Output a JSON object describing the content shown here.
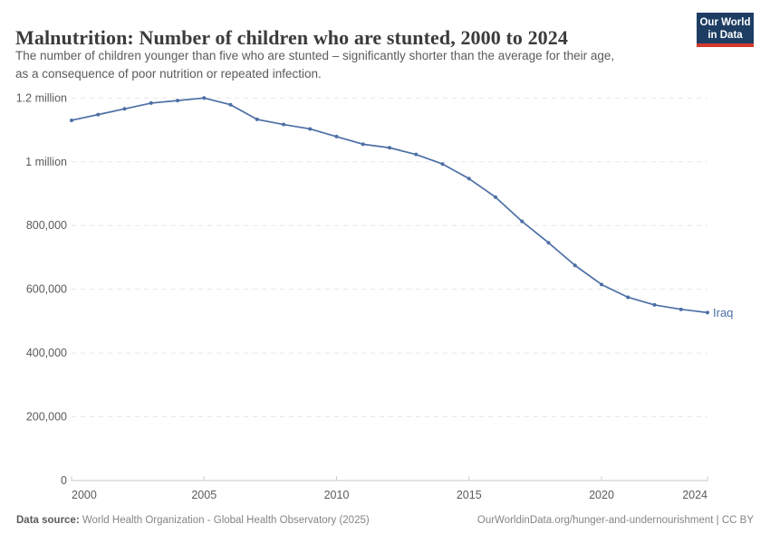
{
  "header": {
    "title": "Malnutrition: Number of children who are stunted, 2000 to 2024",
    "subtitle_line1": "The number of children younger than five who are stunted – significantly shorter than the average for their age,",
    "subtitle_line2": "as a consequence of poor nutrition or repeated infection."
  },
  "logo": {
    "line1": "Our World",
    "line2": "in Data",
    "bg_color": "#1d3d63",
    "accent_color": "#d23a2e"
  },
  "chart_data": {
    "type": "line",
    "title": "Malnutrition: Number of children who are stunted, 2000 to 2024",
    "xlabel": "",
    "ylabel": "",
    "xlim": [
      2000,
      2024
    ],
    "ylim": [
      0,
      1200000
    ],
    "grid": "horizontal-dashed",
    "legend_position": "end-of-line",
    "xticks": [
      {
        "value": 2000,
        "label": "2000"
      },
      {
        "value": 2005,
        "label": "2005"
      },
      {
        "value": 2010,
        "label": "2010"
      },
      {
        "value": 2015,
        "label": "2015"
      },
      {
        "value": 2020,
        "label": "2020"
      },
      {
        "value": 2024,
        "label": "2024"
      }
    ],
    "yticks": [
      {
        "value": 0,
        "label": "0"
      },
      {
        "value": 200000,
        "label": "200,000"
      },
      {
        "value": 400000,
        "label": "400,000"
      },
      {
        "value": 600000,
        "label": "600,000"
      },
      {
        "value": 800000,
        "label": "800,000"
      },
      {
        "value": 1000000,
        "label": "1 million"
      },
      {
        "value": 1200000,
        "label": "1.2 million"
      }
    ],
    "colors": {
      "grid": "#e7e7e7",
      "axis": "#c8c8c8",
      "tick_text": "#5b5b5b"
    },
    "series": [
      {
        "name": "Iraq",
        "color": "#4c6fa5",
        "x": [
          2000,
          2001,
          2002,
          2003,
          2004,
          2005,
          2006,
          2007,
          2008,
          2009,
          2010,
          2011,
          2012,
          2013,
          2014,
          2015,
          2016,
          2017,
          2018,
          2019,
          2020,
          2021,
          2022,
          2023,
          2024
        ],
        "values": [
          1130000,
          1148000,
          1166000,
          1184000,
          1192000,
          1200000,
          1179000,
          1133000,
          1117000,
          1103000,
          1079000,
          1055000,
          1044000,
          1023000,
          993000,
          947000,
          889000,
          813000,
          746000,
          675000,
          615000,
          575000,
          551000,
          537000,
          527000
        ]
      }
    ]
  },
  "footer": {
    "datasource_label": "Data source:",
    "datasource_text": " World Health Organization - Global Health Observatory (2025)",
    "link_text": "OurWorldinData.org/hunger-and-undernourishment | CC BY"
  }
}
